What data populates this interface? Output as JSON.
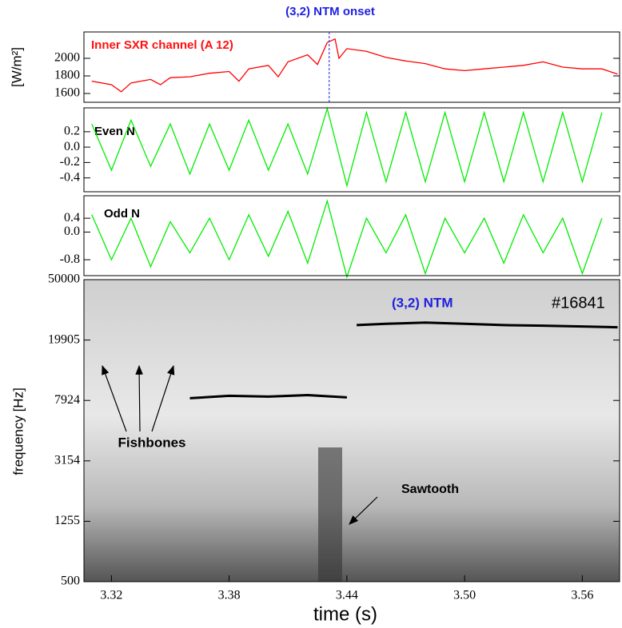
{
  "chart_data": [
    {
      "type": "line",
      "title": "(3,2) NTM onset",
      "ylabel": "[W/m²]",
      "annotation": "Inner SXR channel (A 12)",
      "onset": 3.431,
      "xlim": [
        3.306,
        3.579
      ],
      "ylim": [
        1500,
        2300
      ],
      "yticks": [
        1600,
        1800,
        2000
      ],
      "series": [
        {
          "color": "#ff0000",
          "x": [
            3.31,
            3.32,
            3.325,
            3.33,
            3.34,
            3.345,
            3.35,
            3.36,
            3.37,
            3.38,
            3.385,
            3.39,
            3.4,
            3.405,
            3.41,
            3.42,
            3.425,
            3.43,
            3.434,
            3.436,
            3.44,
            3.45,
            3.46,
            3.47,
            3.48,
            3.49,
            3.5,
            3.51,
            3.52,
            3.53,
            3.54,
            3.55,
            3.56,
            3.57,
            3.578
          ],
          "values": [
            1740,
            1700,
            1620,
            1720,
            1760,
            1700,
            1780,
            1790,
            1830,
            1850,
            1740,
            1880,
            1920,
            1790,
            1960,
            2040,
            1930,
            2180,
            2220,
            2000,
            2110,
            2080,
            2010,
            1970,
            1940,
            1880,
            1860,
            1880,
            1900,
            1920,
            1960,
            1900,
            1880,
            1880,
            1820
          ]
        }
      ]
    },
    {
      "type": "line",
      "annotation": "Even N",
      "xlim": [
        3.306,
        3.579
      ],
      "ylim": [
        -0.58,
        0.51
      ],
      "yticks": [
        0.2,
        {
          "value": 0,
          "label": "0.0"
        },
        -0.2,
        -0.4
      ],
      "series": [
        {
          "color": "#00ee00",
          "x": [
            3.31,
            3.32,
            3.33,
            3.34,
            3.35,
            3.36,
            3.37,
            3.38,
            3.39,
            3.4,
            3.41,
            3.42,
            3.43,
            3.44,
            3.45,
            3.46,
            3.47,
            3.48,
            3.49,
            3.5,
            3.51,
            3.52,
            3.53,
            3.54,
            3.55,
            3.56,
            3.57
          ],
          "values": [
            0.3,
            -0.3,
            0.35,
            -0.25,
            0.3,
            -0.35,
            0.3,
            -0.3,
            0.35,
            -0.3,
            0.3,
            -0.35,
            0.5,
            -0.5,
            0.45,
            -0.45,
            0.45,
            -0.45,
            0.45,
            -0.45,
            0.45,
            -0.45,
            0.45,
            -0.45,
            0.45,
            -0.45,
            0.45
          ]
        }
      ]
    },
    {
      "type": "line",
      "annotation": "Odd N",
      "xlim": [
        3.306,
        3.579
      ],
      "ylim": [
        -1.26,
        1.05
      ],
      "yticks": [
        0.4,
        {
          "value": 0,
          "label": "0.0"
        },
        -0.8
      ],
      "series": [
        {
          "color": "#00ee00",
          "x": [
            3.31,
            3.32,
            3.33,
            3.34,
            3.35,
            3.36,
            3.37,
            3.38,
            3.39,
            3.4,
            3.41,
            3.42,
            3.43,
            3.44,
            3.45,
            3.46,
            3.47,
            3.48,
            3.49,
            3.5,
            3.51,
            3.52,
            3.53,
            3.54,
            3.55,
            3.56,
            3.57
          ],
          "values": [
            0.5,
            -0.8,
            0.4,
            -1.0,
            0.3,
            -0.6,
            0.4,
            -0.8,
            0.5,
            -0.7,
            0.6,
            -0.9,
            0.9,
            -1.3,
            0.4,
            -0.6,
            0.5,
            -1.2,
            0.4,
            -0.6,
            0.4,
            -0.9,
            0.5,
            -0.6,
            0.4,
            -1.2,
            0.4
          ]
        }
      ]
    },
    {
      "type": "spectrogram",
      "xlabel": "time  (s)",
      "ylabel": "frequency [Hz]",
      "log_y": true,
      "mode_label": "(3,2) NTM",
      "shot": "#16841",
      "fishbones": "Fishbones",
      "sawtooth": "Sawtooth",
      "xlim": [
        3.306,
        3.579
      ],
      "xticks": [
        3.32,
        3.38,
        3.44,
        {
          "value": 3.5,
          "label": "3.50"
        },
        3.56
      ],
      "ylim": [
        500,
        50000
      ],
      "yticks": [
        500,
        1255,
        3154,
        7924,
        19905,
        50000
      ],
      "series": [
        {
          "color": "#000000",
          "x": [
            3.445,
            3.46,
            3.48,
            3.5,
            3.52,
            3.54,
            3.56,
            3.578
          ],
          "values": [
            25000,
            25500,
            26000,
            25500,
            25000,
            24800,
            24500,
            24200
          ]
        },
        {
          "color": "#000000",
          "x": [
            3.36,
            3.38,
            3.4,
            3.42,
            3.44
          ],
          "values": [
            8200,
            8500,
            8400,
            8600,
            8300
          ]
        }
      ]
    }
  ]
}
